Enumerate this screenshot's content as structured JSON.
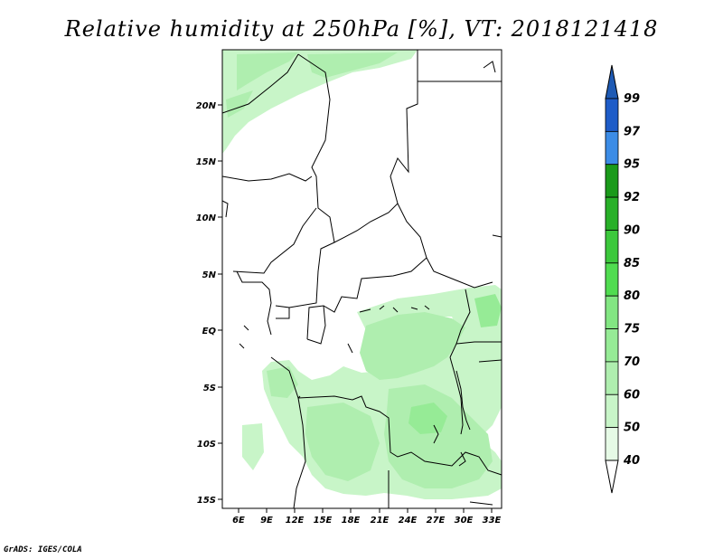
{
  "title": "Relative humidity at 250hPa [%], VT: 2018121418",
  "credit": "GrADS: IGES/COLA",
  "map": {
    "lon_ticks": [
      "6E",
      "9E",
      "12E",
      "15E",
      "18E",
      "21E",
      "24E",
      "27E",
      "30E",
      "33E"
    ],
    "lat_ticks": [
      "20N",
      "15N",
      "10N",
      "5N",
      "EQ",
      "5S",
      "10S",
      "15S"
    ]
  },
  "colorbar": {
    "levels": [
      "99",
      "97",
      "95",
      "92",
      "90",
      "85",
      "80",
      "75",
      "70",
      "60",
      "50",
      "40"
    ],
    "colors": [
      "#1e5cc8",
      "#3c8ce6",
      "#1a9a1a",
      "#28b028",
      "#3cc83c",
      "#50dc50",
      "#82e682",
      "#96eb96",
      "#afeeaf",
      "#c8f5c8",
      "#e6fae6"
    ],
    "top_color": "#1e5ab4"
  }
}
